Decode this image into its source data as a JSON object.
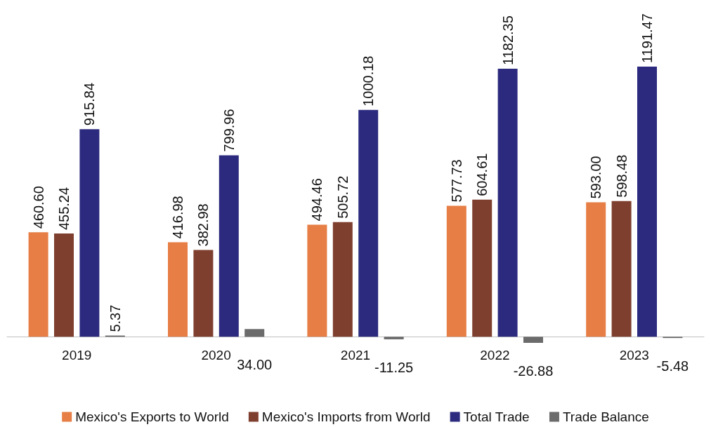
{
  "chart_data": {
    "type": "bar",
    "categories": [
      "2019",
      "2020",
      "2021",
      "2022",
      "2023"
    ],
    "legend": "bottom",
    "series": [
      {
        "name": "Mexico's Exports to World",
        "color": "#e67e45",
        "values": [
          460.6,
          416.98,
          494.46,
          577.73,
          593.0
        ],
        "value_labels": [
          "460.60",
          "416.98",
          "494.46",
          "577.73",
          "593.00"
        ]
      },
      {
        "name": "Mexico's Imports from World",
        "color": "#7f3f2e",
        "values": [
          455.24,
          382.98,
          505.72,
          604.61,
          598.48
        ],
        "value_labels": [
          "455.24",
          "382.98",
          "505.72",
          "604.61",
          "598.48"
        ]
      },
      {
        "name": "Total Trade",
        "color": "#2b2a7e",
        "values": [
          915.84,
          799.96,
          1000.18,
          1182.35,
          1191.47
        ],
        "value_labels": [
          "915.84",
          "799.96",
          "1000.18",
          "1182.35",
          "1191.47"
        ]
      },
      {
        "name": "Trade Balance",
        "color": "#6b6b6b",
        "values": [
          5.37,
          34.0,
          -11.25,
          -26.88,
          -5.48
        ],
        "value_labels": [
          "5.37",
          "34.00",
          "-11.25",
          "-26.88",
          "-5.48"
        ]
      }
    ]
  }
}
